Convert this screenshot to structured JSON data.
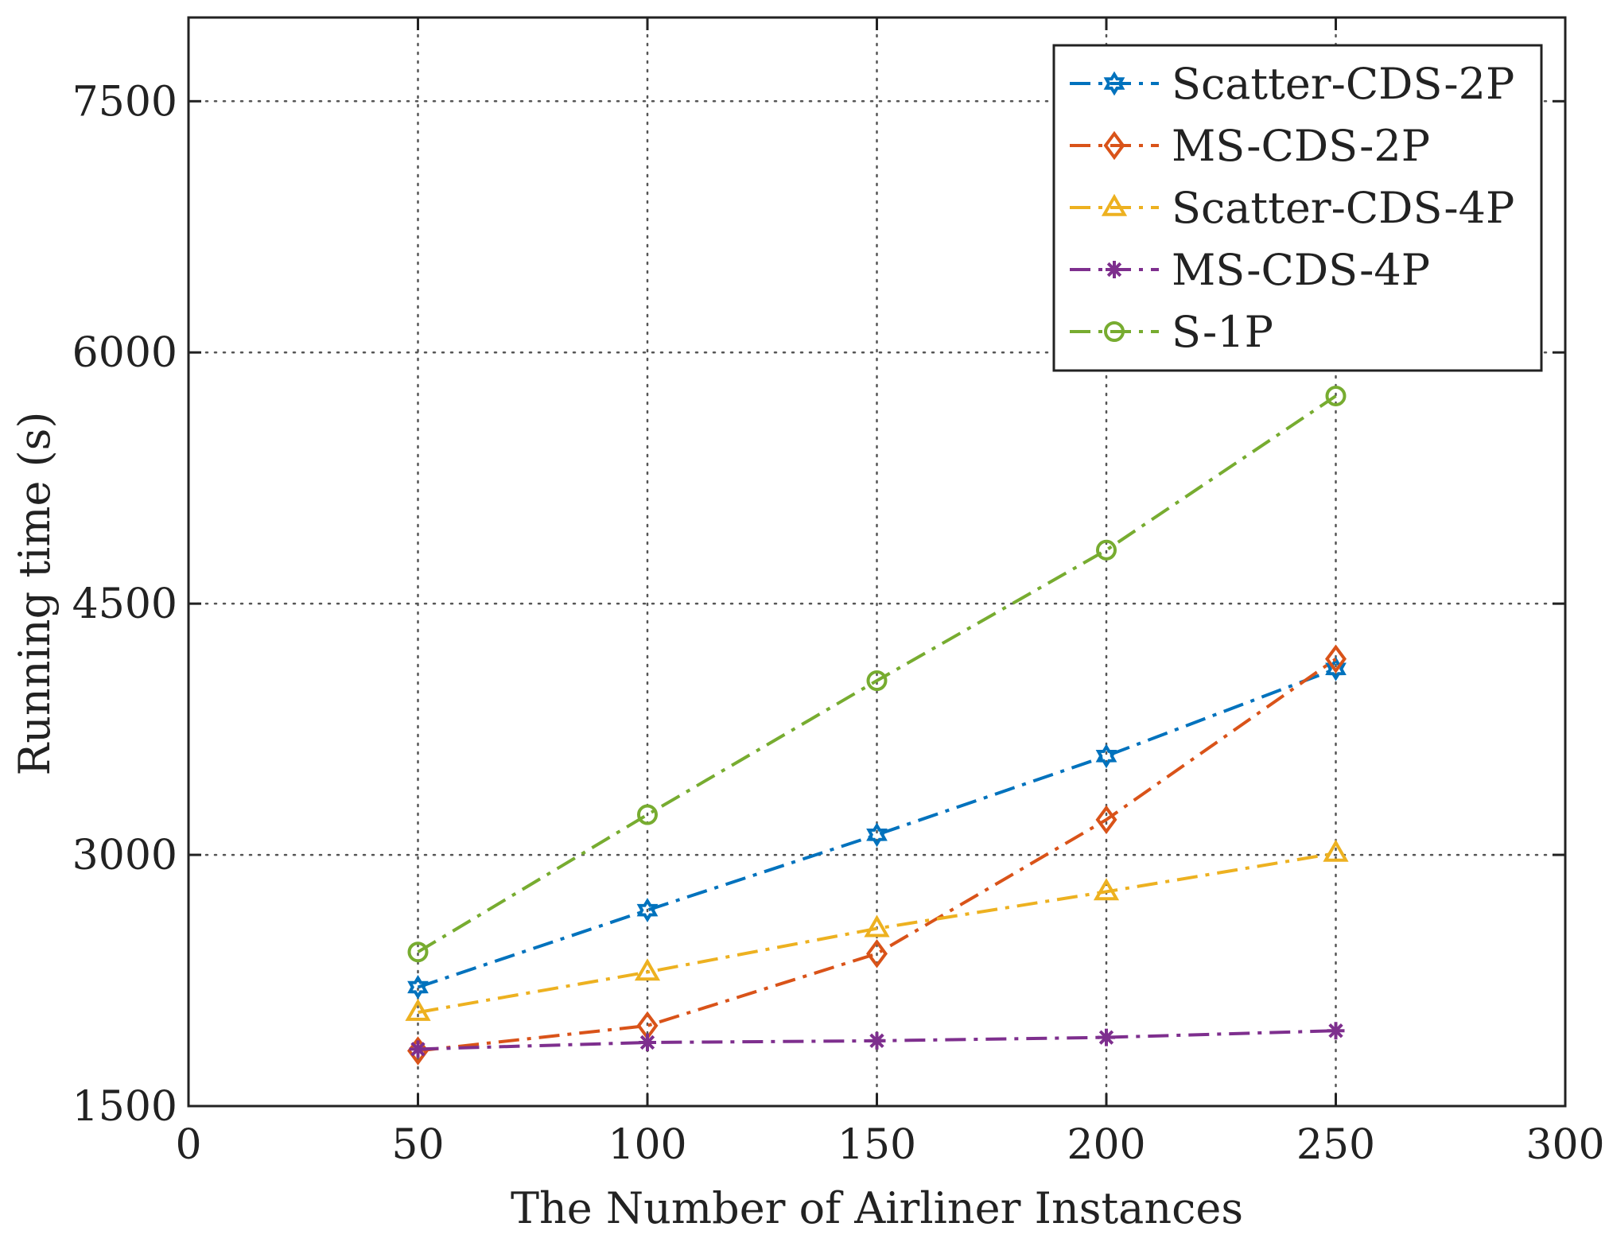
{
  "chart_data": {
    "type": "line",
    "title": "",
    "xlabel": "The Number of Airliner Instances",
    "ylabel": "Running time (s)",
    "xlim": [
      0,
      300
    ],
    "ylim": [
      1500,
      8000
    ],
    "x_ticks": [
      0,
      50,
      100,
      150,
      200,
      250,
      300
    ],
    "y_ticks": [
      1500,
      3000,
      4500,
      6000,
      7500
    ],
    "x_tick_labels": [
      "0",
      "50",
      "100",
      "150",
      "200",
      "250",
      "300"
    ],
    "y_tick_labels": [
      "1500",
      "3000",
      "4500",
      "6000",
      "7500"
    ],
    "grid": true,
    "legend_position": "top-right",
    "x": [
      50,
      100,
      150,
      200,
      250
    ],
    "series": [
      {
        "name": "Scatter-CDS-2P",
        "color": "#0072BD",
        "marker": "hexagram",
        "values": [
          2210,
          2670,
          3120,
          3590,
          4110
        ]
      },
      {
        "name": "MS-CDS-2P",
        "color": "#D95319",
        "marker": "diamond",
        "values": [
          1830,
          1980,
          2410,
          3210,
          4170
        ]
      },
      {
        "name": "Scatter-CDS-4P",
        "color": "#EDB120",
        "marker": "triangle",
        "values": [
          2060,
          2300,
          2560,
          2780,
          3010
        ]
      },
      {
        "name": "MS-CDS-4P",
        "color": "#7E2F8E",
        "marker": "asterisk",
        "values": [
          1840,
          1880,
          1890,
          1910,
          1950
        ]
      },
      {
        "name": "S-1P",
        "color": "#77AC30",
        "marker": "circle",
        "values": [
          2420,
          3240,
          4040,
          4820,
          5740
        ]
      }
    ]
  }
}
